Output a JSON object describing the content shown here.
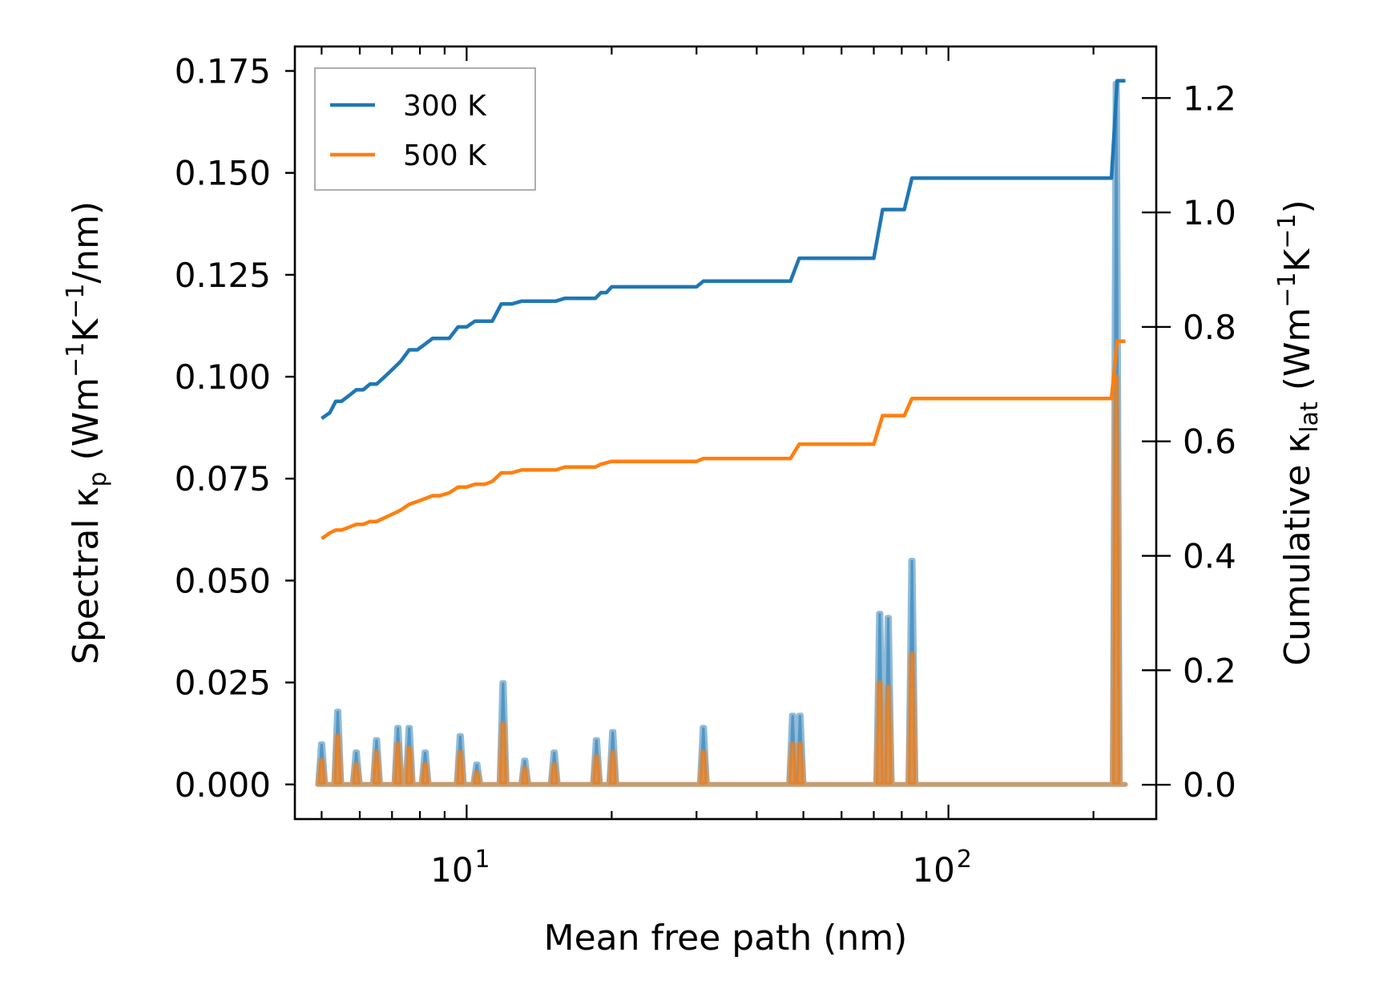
{
  "chart_data": {
    "type": "line",
    "xlabel": "Mean free path (nm)",
    "xscale": "log",
    "xlim": [
      4.4,
      270
    ],
    "x_ticks": [
      {
        "base": "10",
        "exp": "1",
        "value": 10
      },
      {
        "base": "10",
        "exp": "2",
        "value": 100
      }
    ],
    "left_axis": {
      "label_parts": [
        "Spectral κ",
        "p",
        " (Wm",
        "−1",
        "K",
        "−1",
        "/nm)"
      ],
      "ylim": [
        -0.0085,
        0.181
      ],
      "ticks": [
        {
          "label": "0.000",
          "value": 0.0
        },
        {
          "label": "0.025",
          "value": 0.025
        },
        {
          "label": "0.050",
          "value": 0.05
        },
        {
          "label": "0.075",
          "value": 0.075
        },
        {
          "label": "0.100",
          "value": 0.1
        },
        {
          "label": "0.125",
          "value": 0.125
        },
        {
          "label": "0.150",
          "value": 0.15
        },
        {
          "label": "0.175",
          "value": 0.175
        }
      ]
    },
    "right_axis": {
      "label_parts": [
        "Cumulative κ",
        "lat",
        " (Wm",
        "−1",
        "K",
        "−1",
        ")"
      ],
      "ylim": [
        -0.06,
        1.29
      ],
      "ticks": [
        {
          "label": "0.0",
          "value": 0.0
        },
        {
          "label": "0.2",
          "value": 0.2
        },
        {
          "label": "0.4",
          "value": 0.4
        },
        {
          "label": "0.6",
          "value": 0.6
        },
        {
          "label": "0.8",
          "value": 0.8
        },
        {
          "label": "1.0",
          "value": 1.0
        },
        {
          "label": "1.2",
          "value": 1.2
        }
      ]
    },
    "legend": {
      "position": "top-left"
    },
    "series": [
      {
        "name": "300 K",
        "color": "#1f77b4",
        "cumulative": [
          [
            5.0,
            0.64
          ],
          [
            5.2,
            0.65
          ],
          [
            5.35,
            0.67
          ],
          [
            5.5,
            0.67
          ],
          [
            5.7,
            0.68
          ],
          [
            5.9,
            0.69
          ],
          [
            6.1,
            0.69
          ],
          [
            6.3,
            0.7
          ],
          [
            6.5,
            0.7
          ],
          [
            6.7,
            0.71
          ],
          [
            6.9,
            0.72
          ],
          [
            7.1,
            0.73
          ],
          [
            7.3,
            0.74
          ],
          [
            7.6,
            0.76
          ],
          [
            7.9,
            0.76
          ],
          [
            8.2,
            0.77
          ],
          [
            8.5,
            0.78
          ],
          [
            8.8,
            0.78
          ],
          [
            9.2,
            0.78
          ],
          [
            9.6,
            0.8
          ],
          [
            10.0,
            0.8
          ],
          [
            10.4,
            0.81
          ],
          [
            10.9,
            0.81
          ],
          [
            11.3,
            0.81
          ],
          [
            11.8,
            0.84
          ],
          [
            12.4,
            0.84
          ],
          [
            13.0,
            0.845
          ],
          [
            14.0,
            0.845
          ],
          [
            15.3,
            0.845
          ],
          [
            16.0,
            0.85
          ],
          [
            18.5,
            0.85
          ],
          [
            19.0,
            0.86
          ],
          [
            19.5,
            0.86
          ],
          [
            20.0,
            0.87
          ],
          [
            25.0,
            0.87
          ],
          [
            30.0,
            0.87
          ],
          [
            31.0,
            0.88
          ],
          [
            47.0,
            0.88
          ],
          [
            49.0,
            0.92
          ],
          [
            70.0,
            0.92
          ],
          [
            73.0,
            1.005
          ],
          [
            81.0,
            1.005
          ],
          [
            84.0,
            1.06
          ],
          [
            218.0,
            1.06
          ],
          [
            224.0,
            1.23
          ],
          [
            233.0,
            1.23
          ]
        ],
        "spectral_peaks": [
          [
            5.0,
            0.01
          ],
          [
            5.4,
            0.018
          ],
          [
            5.9,
            0.008
          ],
          [
            6.5,
            0.011
          ],
          [
            7.2,
            0.014
          ],
          [
            7.6,
            0.014
          ],
          [
            8.2,
            0.008
          ],
          [
            9.7,
            0.012
          ],
          [
            10.5,
            0.005
          ],
          [
            11.9,
            0.025
          ],
          [
            13.2,
            0.006
          ],
          [
            15.2,
            0.008
          ],
          [
            18.6,
            0.011
          ],
          [
            20.1,
            0.013
          ],
          [
            31.0,
            0.014
          ],
          [
            47.5,
            0.017
          ],
          [
            49.2,
            0.017
          ],
          [
            72.0,
            0.042
          ],
          [
            75.0,
            0.041
          ],
          [
            84.0,
            0.055
          ],
          [
            223.0,
            0.172
          ]
        ]
      },
      {
        "name": "500 K",
        "color": "#ff7f0e",
        "cumulative": [
          [
            5.0,
            0.43
          ],
          [
            5.2,
            0.44
          ],
          [
            5.35,
            0.445
          ],
          [
            5.5,
            0.445
          ],
          [
            5.7,
            0.45
          ],
          [
            5.9,
            0.455
          ],
          [
            6.1,
            0.455
          ],
          [
            6.3,
            0.46
          ],
          [
            6.5,
            0.46
          ],
          [
            6.7,
            0.465
          ],
          [
            6.9,
            0.47
          ],
          [
            7.1,
            0.475
          ],
          [
            7.3,
            0.48
          ],
          [
            7.6,
            0.49
          ],
          [
            7.9,
            0.495
          ],
          [
            8.2,
            0.5
          ],
          [
            8.5,
            0.505
          ],
          [
            8.8,
            0.505
          ],
          [
            9.2,
            0.51
          ],
          [
            9.6,
            0.52
          ],
          [
            10.0,
            0.52
          ],
          [
            10.4,
            0.525
          ],
          [
            10.9,
            0.525
          ],
          [
            11.3,
            0.53
          ],
          [
            11.8,
            0.545
          ],
          [
            12.4,
            0.545
          ],
          [
            13.0,
            0.55
          ],
          [
            15.3,
            0.55
          ],
          [
            16.0,
            0.555
          ],
          [
            18.5,
            0.555
          ],
          [
            19.0,
            0.56
          ],
          [
            20.0,
            0.565
          ],
          [
            30.0,
            0.565
          ],
          [
            31.0,
            0.57
          ],
          [
            47.0,
            0.57
          ],
          [
            49.0,
            0.595
          ],
          [
            70.0,
            0.595
          ],
          [
            73.0,
            0.645
          ],
          [
            81.0,
            0.645
          ],
          [
            84.0,
            0.675
          ],
          [
            218.0,
            0.675
          ],
          [
            224.0,
            0.775
          ],
          [
            233.0,
            0.775
          ]
        ],
        "spectral_peaks": [
          [
            5.0,
            0.006
          ],
          [
            5.4,
            0.012
          ],
          [
            5.9,
            0.005
          ],
          [
            6.5,
            0.008
          ],
          [
            7.2,
            0.01
          ],
          [
            7.6,
            0.009
          ],
          [
            8.2,
            0.005
          ],
          [
            9.7,
            0.008
          ],
          [
            10.5,
            0.003
          ],
          [
            11.9,
            0.015
          ],
          [
            13.2,
            0.004
          ],
          [
            15.2,
            0.005
          ],
          [
            18.6,
            0.007
          ],
          [
            20.1,
            0.008
          ],
          [
            31.0,
            0.008
          ],
          [
            47.5,
            0.01
          ],
          [
            49.2,
            0.01
          ],
          [
            72.0,
            0.025
          ],
          [
            75.0,
            0.024
          ],
          [
            84.0,
            0.032
          ],
          [
            223.0,
            0.1
          ]
        ]
      }
    ]
  }
}
